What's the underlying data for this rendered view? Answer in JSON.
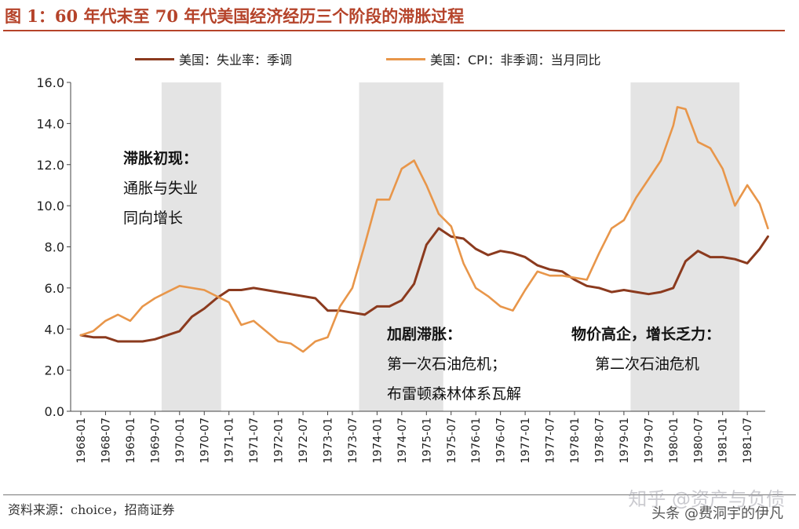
{
  "title": "图 1：60 年代末至 70 年代美国经济经历三个阶段的滞胀过程",
  "legend": [
    {
      "label": "美国：失业率：季调",
      "color": "#8b3a1e"
    },
    {
      "label": "美国：CPI：非季调：当月同比",
      "color": "#e8964a"
    }
  ],
  "annotations": [
    {
      "lines": [
        "滞胀初现：",
        "通胀与失业",
        "同向增长"
      ]
    },
    {
      "lines": [
        "加剧滞胀：",
        "第一次石油危机；",
        "布雷顿森林体系瓦解"
      ]
    },
    {
      "lines": [
        "物价高企，增长乏力：",
        "第二次石油危机"
      ]
    }
  ],
  "source": "资料来源：choice，招商证券",
  "watermark": "知乎 @资产与负债",
  "watermark2": "头条 @费洞宇的伊凡",
  "colors": {
    "shade": "#e4e4e4",
    "unemployment": "#8b3a1e",
    "cpi": "#e8964a",
    "title": "#b5432a"
  },
  "chart_data": {
    "type": "line",
    "x_tick_labels": [
      "1968-01",
      "1968-07",
      "1969-01",
      "1969-07",
      "1970-01",
      "1970-07",
      "1971-01",
      "1971-07",
      "1972-01",
      "1972-07",
      "1973-01",
      "1973-07",
      "1974-01",
      "1974-07",
      "1975-01",
      "1975-07",
      "1976-01",
      "1976-07",
      "1977-01",
      "1977-07",
      "1978-01",
      "1978-07",
      "1979-01",
      "1979-07",
      "1980-01",
      "1980-07",
      "1981-01",
      "1981-07"
    ],
    "ylim": [
      0,
      16
    ],
    "y_ticks": [
      "0.0",
      "2.0",
      "4.0",
      "6.0",
      "8.0",
      "10.0",
      "12.0",
      "14.0",
      "16.0"
    ],
    "shaded_ranges": [
      [
        "1969-01",
        "1971-01"
      ],
      [
        "1973-01",
        "1975-07"
      ],
      [
        "1978-07",
        "1981-07"
      ]
    ],
    "series": [
      {
        "name": "美国：失业率：季调",
        "x": [
          "1968-01",
          "1968-04",
          "1968-07",
          "1968-10",
          "1969-01",
          "1969-04",
          "1969-07",
          "1969-10",
          "1970-01",
          "1970-04",
          "1970-07",
          "1970-10",
          "1971-01",
          "1971-04",
          "1971-07",
          "1971-10",
          "1972-01",
          "1972-04",
          "1972-07",
          "1972-10",
          "1973-01",
          "1973-04",
          "1973-07",
          "1973-10",
          "1974-01",
          "1974-04",
          "1974-07",
          "1974-10",
          "1975-01",
          "1975-04",
          "1975-07",
          "1975-10",
          "1976-01",
          "1976-04",
          "1976-07",
          "1976-10",
          "1977-01",
          "1977-04",
          "1977-07",
          "1977-10",
          "1978-01",
          "1978-04",
          "1978-07",
          "1978-10",
          "1979-01",
          "1979-04",
          "1979-07",
          "1979-10",
          "1980-01",
          "1980-04",
          "1980-07",
          "1980-10",
          "1981-01",
          "1981-04",
          "1981-07",
          "1981-10",
          "1981-12"
        ],
        "values": [
          3.7,
          3.6,
          3.6,
          3.4,
          3.4,
          3.4,
          3.5,
          3.7,
          3.9,
          4.6,
          5.0,
          5.5,
          5.9,
          5.9,
          6.0,
          5.9,
          5.8,
          5.7,
          5.6,
          5.5,
          4.9,
          4.9,
          4.8,
          4.7,
          5.1,
          5.1,
          5.4,
          6.2,
          8.1,
          8.9,
          8.5,
          8.4,
          7.9,
          7.6,
          7.8,
          7.7,
          7.5,
          7.1,
          6.9,
          6.8,
          6.4,
          6.1,
          6.0,
          5.8,
          5.9,
          5.8,
          5.7,
          5.8,
          6.0,
          7.3,
          7.8,
          7.5,
          7.5,
          7.4,
          7.2,
          7.9,
          8.5
        ]
      },
      {
        "name": "美国：CPI：非季调：当月同比",
        "x": [
          "1968-01",
          "1968-04",
          "1968-07",
          "1968-10",
          "1969-01",
          "1969-04",
          "1969-07",
          "1969-10",
          "1970-01",
          "1970-04",
          "1970-07",
          "1970-10",
          "1971-01",
          "1971-04",
          "1971-07",
          "1971-10",
          "1972-01",
          "1972-04",
          "1972-07",
          "1972-10",
          "1973-01",
          "1973-04",
          "1973-07",
          "1973-10",
          "1974-01",
          "1974-04",
          "1974-07",
          "1974-10",
          "1975-01",
          "1975-04",
          "1975-07",
          "1975-10",
          "1976-01",
          "1976-04",
          "1976-07",
          "1976-10",
          "1977-01",
          "1977-04",
          "1977-07",
          "1977-10",
          "1978-01",
          "1978-04",
          "1978-07",
          "1978-10",
          "1979-01",
          "1979-04",
          "1979-07",
          "1979-10",
          "1980-01",
          "1980-02",
          "1980-04",
          "1980-07",
          "1980-10",
          "1981-01",
          "1981-04",
          "1981-07",
          "1981-10",
          "1981-12"
        ],
        "values": [
          3.7,
          3.9,
          4.4,
          4.7,
          4.4,
          5.1,
          5.5,
          5.8,
          6.1,
          6.0,
          5.9,
          5.6,
          5.3,
          4.2,
          4.4,
          3.9,
          3.4,
          3.3,
          2.9,
          3.4,
          3.6,
          5.1,
          6.0,
          8.1,
          10.3,
          10.3,
          11.8,
          12.2,
          11.0,
          9.6,
          9.0,
          7.2,
          6.0,
          5.6,
          5.1,
          4.9,
          5.9,
          6.8,
          6.6,
          6.6,
          6.5,
          6.4,
          7.7,
          8.9,
          9.3,
          10.4,
          11.3,
          12.2,
          13.9,
          14.8,
          14.7,
          13.1,
          12.8,
          11.8,
          10.0,
          11.0,
          10.1,
          8.9
        ]
      }
    ]
  }
}
